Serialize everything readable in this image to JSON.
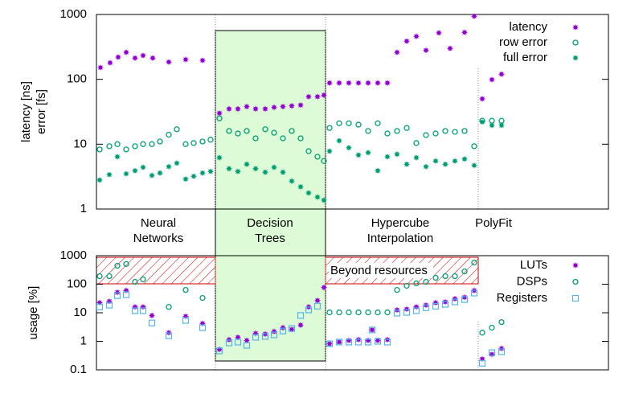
{
  "chart_data": [
    {
      "type": "scatter",
      "ylog": true,
      "ylabel": [
        "latency [ns]",
        "error [fs]"
      ],
      "group_labels": [
        [
          "Neural",
          "Networks"
        ],
        [
          "Decision",
          "Trees"
        ],
        [
          "Hypercube",
          "Interpolation"
        ],
        [
          "PolyFit"
        ]
      ],
      "xlim": [
        0,
        63.7
      ],
      "ylim": [
        1,
        1000
      ],
      "yticks": [
        1,
        10,
        100,
        1000
      ],
      "legend": "top-right",
      "series": [
        {
          "name": "latency",
          "color": "#9400d3",
          "marker": "filled",
          "x": [
            0.5,
            1.7,
            2.7,
            3.7,
            4.8,
            5.8,
            7.0,
            9.0,
            11.1,
            13.2,
            15.3,
            16.5,
            17.6,
            18.7,
            19.8,
            21.0,
            22.1,
            23.2,
            24.3,
            25.4,
            26.4,
            27.5,
            28.3,
            29.0,
            30.2,
            31.4,
            32.6,
            33.8,
            35.0,
            36.2,
            37.4,
            38.6,
            39.8,
            41.0,
            42.6,
            44.0,
            45.8,
            47.0,
            48.0,
            49.2,
            50.4
          ],
          "values": [
            152,
            180,
            220,
            261,
            213,
            233,
            213,
            185,
            202,
            196,
            30,
            35,
            35,
            38,
            35,
            35,
            37,
            38,
            39,
            40,
            54,
            54,
            57,
            88,
            88,
            88,
            88,
            88,
            88,
            88,
            261,
            388,
            460,
            280,
            520,
            300,
            530,
            940,
            50,
            99,
            120
          ]
        },
        {
          "name": "row error",
          "color": "#009e73",
          "marker": "open",
          "x": [
            0.4,
            1.6,
            2.6,
            3.7,
            4.8,
            5.8,
            6.9,
            7.9,
            9.0,
            10.0,
            11.1,
            12.1,
            13.2,
            14.2,
            15.3,
            16.5,
            17.6,
            18.7,
            19.8,
            21.0,
            22.1,
            23.2,
            24.3,
            25.4,
            26.4,
            27.5,
            28.3,
            29.0,
            30.2,
            31.4,
            32.6,
            33.8,
            35.0,
            36.2,
            37.4,
            38.6,
            39.8,
            41.0,
            42.2,
            43.4,
            44.6,
            45.8,
            47.0,
            48.0,
            49.2,
            50.4
          ],
          "values": [
            8.3,
            9.3,
            10,
            8.3,
            9.3,
            10,
            10,
            11,
            14,
            17,
            10,
            10.4,
            11,
            11.7,
            25,
            16,
            14.6,
            16,
            12.3,
            17,
            15,
            12.3,
            16,
            12.3,
            7.8,
            6.4,
            5.5,
            17.8,
            21,
            21,
            20,
            16,
            21,
            14.6,
            16,
            17.8,
            10.4,
            13.8,
            14.6,
            16,
            15.5,
            16,
            9.3,
            23,
            23,
            23
          ]
        },
        {
          "name": "full error",
          "color": "#009e73",
          "marker": "filled",
          "x": [
            0.4,
            1.6,
            2.6,
            3.7,
            4.8,
            5.8,
            6.9,
            7.9,
            9.0,
            10.0,
            11.1,
            12.1,
            13.2,
            14.2,
            15.3,
            16.5,
            17.6,
            18.7,
            19.8,
            21.0,
            22.1,
            23.2,
            24.3,
            25.4,
            26.4,
            27.5,
            28.3,
            29.0,
            30.2,
            31.4,
            32.6,
            33.8,
            35.0,
            36.2,
            37.4,
            38.6,
            39.8,
            41.0,
            42.2,
            43.4,
            44.6,
            45.8,
            47.0,
            48.0,
            49.2,
            50.4
          ],
          "values": [
            2.8,
            3.4,
            6.4,
            3.5,
            3.9,
            4.4,
            3.3,
            3.6,
            4.5,
            5.1,
            2.9,
            3.2,
            3.6,
            3.8,
            6.2,
            4.2,
            3.8,
            4.9,
            4.2,
            3.7,
            4.4,
            3.7,
            2.7,
            2.2,
            1.77,
            1.53,
            1.37,
            7.8,
            11.3,
            8.8,
            6.8,
            7.4,
            3.9,
            6.4,
            7.0,
            4.9,
            6.2,
            4.5,
            5.5,
            4.9,
            5.5,
            5.9,
            4.7,
            22,
            19.5,
            19.5
          ]
        }
      ]
    },
    {
      "type": "scatter",
      "ylog": true,
      "ylabel": [
        "usage [%]"
      ],
      "annotation": "Beyond resources",
      "xlim": [
        0,
        63.7
      ],
      "ylim": [
        0.1,
        1000
      ],
      "yticks": [
        0.1,
        1,
        10,
        100,
        1000
      ],
      "legend": "top-right",
      "series": [
        {
          "name": "LUTs",
          "color": "#9400d3",
          "marker": "filled",
          "x": [
            0.4,
            1.6,
            2.6,
            3.7,
            4.8,
            5.8,
            6.9,
            9.0,
            11.1,
            13.2,
            15.3,
            16.5,
            17.6,
            18.7,
            19.8,
            21.0,
            22.1,
            23.2,
            24.3,
            25.4,
            26.4,
            27.5,
            28.3,
            29.0,
            30.2,
            31.4,
            32.6,
            33.8,
            34.3,
            35.0,
            36.2,
            37.4,
            38.6,
            39.8,
            41.0,
            42.2,
            43.4,
            44.6,
            45.8,
            47.0,
            48.0,
            49.2,
            50.4
          ],
          "values": [
            22.5,
            25,
            52,
            60,
            16,
            16,
            8,
            2.0,
            7.5,
            4.2,
            0.52,
            1.14,
            1.38,
            1.07,
            1.9,
            1.8,
            2.2,
            3.0,
            2.6,
            3.7,
            16,
            27,
            77,
            0.82,
            0.94,
            1.07,
            1.14,
            1.07,
            2.5,
            1.07,
            1.14,
            12.5,
            13.4,
            16,
            18.5,
            22.5,
            24,
            31,
            35,
            60,
            0.24,
            0.35,
            0.56
          ]
        },
        {
          "name": "DSPs",
          "color": "#009e73",
          "marker": "open",
          "x": [
            0.4,
            1.6,
            2.6,
            3.7,
            4.8,
            5.8,
            9.0,
            11.1,
            13.2,
            29.0,
            30.2,
            31.4,
            32.6,
            33.8,
            35.0,
            36.2,
            37.4,
            38.6,
            39.8,
            41.0,
            42.2,
            43.4,
            44.6,
            45.8,
            47.0,
            48.0,
            49.2,
            50.4
          ],
          "values": [
            191,
            191,
            444,
            510,
            121,
            148,
            16,
            63,
            33,
            10.3,
            10.3,
            10.3,
            10.3,
            10.3,
            10.3,
            10.3,
            63,
            88,
            107,
            121,
            168,
            191,
            191,
            280,
            575,
            2.0,
            3.0,
            4.7
          ]
        },
        {
          "name": "Registers",
          "color": "#56b4e9",
          "marker": "square",
          "x": [
            0.4,
            1.6,
            2.6,
            3.7,
            4.8,
            5.8,
            6.9,
            9.0,
            11.1,
            13.2,
            15.3,
            16.5,
            17.6,
            18.7,
            19.8,
            21.0,
            22.1,
            23.2,
            24.3,
            25.4,
            26.4,
            27.5,
            29.0,
            30.2,
            31.4,
            32.6,
            33.8,
            34.3,
            35.0,
            36.2,
            37.4,
            38.6,
            39.8,
            41.0,
            42.2,
            43.4,
            44.6,
            45.8,
            47.0,
            48.0,
            49.2,
            50.4
          ],
          "values": [
            16,
            18.5,
            40,
            43,
            11.8,
            11.8,
            4.4,
            1.57,
            5.4,
            3.0,
            0.46,
            0.88,
            0.94,
            0.72,
            1.38,
            1.48,
            1.68,
            2.3,
            2.8,
            8,
            12.6,
            17,
            0.82,
            0.94,
            0.94,
            0.94,
            0.94,
            2.5,
            1.0,
            0.94,
            9.7,
            10.3,
            11.8,
            15,
            17,
            19.8,
            24,
            29,
            49,
            0.17,
            0.4,
            0.43
          ]
        }
      ]
    }
  ]
}
